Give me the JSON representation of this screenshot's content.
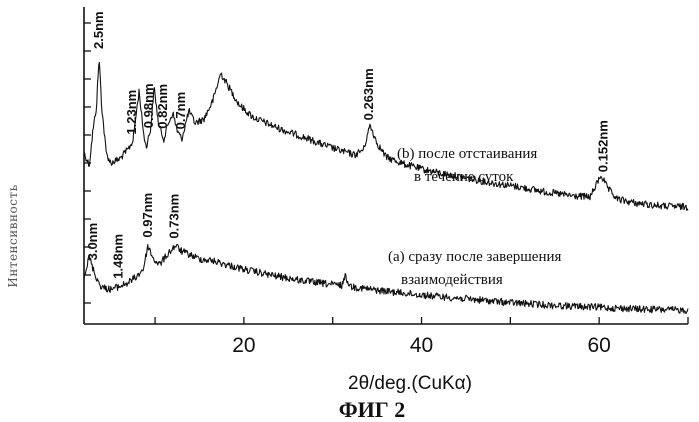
{
  "chart_data": {
    "type": "line",
    "title": "",
    "xlabel": "2θ/deg.(CuKα)",
    "ylabel": "Интенсивность",
    "caption": "ФИГ 2",
    "xlim": [
      2,
      70
    ],
    "xticks": [
      20,
      40,
      60
    ],
    "grid": false,
    "series": [
      {
        "label": "(b) после отстаивания в течение суток",
        "label_lines": [
          "(b) после отстаивания",
          "в течение суток"
        ],
        "x": [
          2.0,
          2.6,
          3.0,
          3.4,
          3.7,
          4.0,
          4.5,
          5.0,
          6.0,
          7.0,
          7.5,
          8.2,
          8.7,
          9.0,
          9.5,
          9.9,
          10.4,
          11.0,
          11.5,
          12.0,
          12.5,
          13.0,
          13.4,
          13.8,
          14.5,
          15.5,
          16.5,
          17.4,
          18.3,
          19.5,
          21.0,
          23.0,
          25.0,
          27.0,
          29.0,
          31.0,
          32.5,
          33.5,
          34.2,
          35.0,
          36.0,
          38.0,
          40.0,
          42.0,
          45.0,
          48.0,
          51.0,
          54.0,
          57.0,
          59.0,
          60.2,
          61.0,
          62.0,
          64.0,
          67.0,
          70.0
        ],
        "y": [
          60,
          48,
          82,
          106,
          156,
          106,
          60,
          50,
          54,
          64,
          72,
          122,
          80,
          66,
          84,
          126,
          88,
          74,
          90,
          100,
          82,
          74,
          88,
          102,
          90,
          94,
          112,
          140,
          126,
          108,
          96,
          88,
          81,
          75,
          68,
          62,
          58,
          64,
          88,
          70,
          56,
          49,
          44,
          40,
          35,
          30,
          26,
          21,
          17,
          16,
          38,
          24,
          14,
          10,
          7,
          6
        ]
      },
      {
        "label": "(a) сразу после завершения взаимодействия",
        "label_lines": [
          "(a) сразу после завершения",
          "взаимодействия"
        ],
        "x": [
          2.0,
          2.6,
          3.0,
          3.5,
          4.0,
          5.0,
          6.0,
          7.0,
          8.0,
          8.7,
          9.2,
          9.8,
          10.5,
          11.5,
          12.3,
          13.0,
          14.0,
          15.0,
          16.5,
          18.0,
          20.0,
          23.0,
          26.0,
          29.0,
          31.0,
          31.4,
          32.0,
          35.0,
          40.0,
          45.0,
          50.0,
          55.0,
          60.0,
          65.0,
          70.0
        ],
        "y": [
          40,
          60,
          48,
          36,
          28,
          26,
          29,
          33,
          40,
          48,
          72,
          58,
          52,
          64,
          72,
          66,
          62,
          58,
          56,
          52,
          47,
          41,
          36,
          32,
          30,
          40,
          29,
          25,
          20,
          16,
          12,
          9,
          7,
          5,
          4
        ]
      }
    ],
    "peak_labels": [
      {
        "text": "2.5nm",
        "x": 3.7,
        "series": 0
      },
      {
        "text": "1.23nm",
        "x": 7.4,
        "series": 0
      },
      {
        "text": "0.98nm",
        "x": 9.3,
        "series": 0
      },
      {
        "text": "0.82nm",
        "x": 10.9,
        "series": 0
      },
      {
        "text": "0.7nm",
        "x": 12.9,
        "series": 0
      },
      {
        "text": "0.263nm",
        "x": 34.1,
        "series": 0
      },
      {
        "text": "0.152nm",
        "x": 60.5,
        "series": 0
      },
      {
        "text": "3.0nm",
        "x": 3.0,
        "series": 1
      },
      {
        "text": "1.48nm",
        "x": 5.9,
        "series": 1
      },
      {
        "text": "0.97nm",
        "x": 9.2,
        "series": 1
      },
      {
        "text": "0.73nm",
        "x": 12.2,
        "series": 1
      }
    ]
  }
}
